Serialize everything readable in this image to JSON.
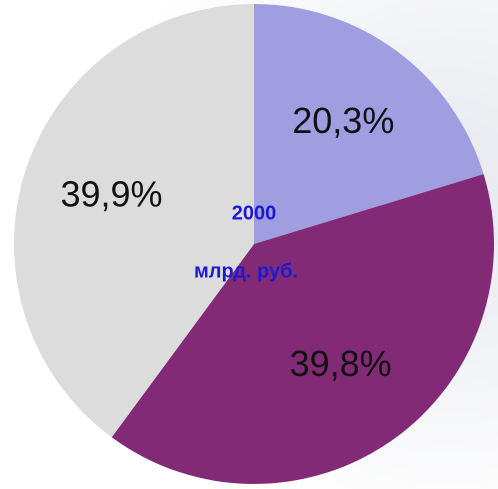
{
  "chart_data": {
    "type": "pie",
    "values": [
      20.3,
      39.8,
      39.9
    ],
    "value_labels": [
      "20,3%",
      "39,8%",
      "39,9%"
    ],
    "colors": [
      "#a09de0",
      "#832a77",
      "#dcdcdc"
    ],
    "annotations": [
      "2000",
      "млрд. руб."
    ],
    "annotation_color": "#1a1ad0"
  }
}
